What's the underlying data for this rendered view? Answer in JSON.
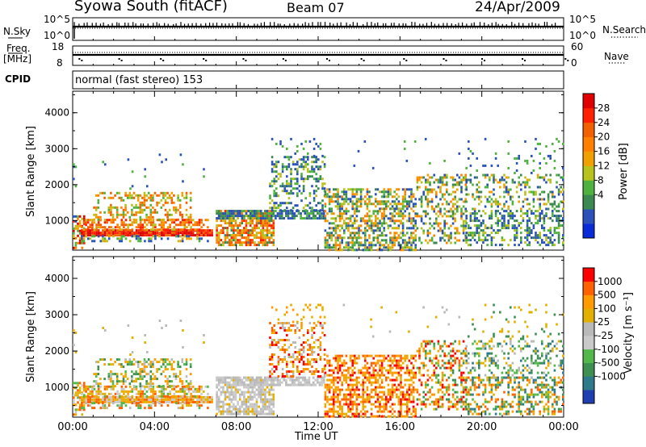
{
  "header": {
    "station": "Syowa South (fitACF)",
    "beam": "Beam 07",
    "date": "24/Apr/2009"
  },
  "top_panels": {
    "nsky_label": "N.Sky",
    "nsky_ticks": [
      "10^5",
      "10^0"
    ],
    "nsearch_label": "N.Search",
    "nsearch_ticks": [
      "10^5",
      "10^0"
    ],
    "freq_label_line1": "Freq.",
    "freq_label_line2": "[MHz]",
    "freq_ticks": [
      "18",
      "8"
    ],
    "nave_label": "Nave",
    "nave_ticks": [
      "60",
      "0"
    ],
    "cpid_label": "CPID",
    "cpid_text": "normal (fast stereo) 153"
  },
  "chart_data": [
    {
      "type": "heatmap",
      "name": "power",
      "ylabel": "Slant Range [km]",
      "ylim": [
        180,
        4600
      ],
      "yticks": [
        "4000",
        "3000",
        "2000",
        "1000"
      ],
      "xlim_hours": [
        0,
        24
      ],
      "colorbar_label": "Power [dB]",
      "colorbar_ticks": [
        "28",
        "24",
        "20",
        "16",
        "12",
        "8",
        "4"
      ],
      "colorbar_colors": [
        "#0a2bd8",
        "#2a52b8",
        "#3b8850",
        "#4fb23e",
        "#b8c21c",
        "#f0a000",
        "#ff8000",
        "#f26000",
        "#ff2000",
        "#e00000"
      ]
    },
    {
      "type": "heatmap",
      "name": "velocity",
      "ylabel": "Slant Range [km]",
      "ylim": [
        180,
        4600
      ],
      "yticks": [
        "4000",
        "3000",
        "2000",
        "1000"
      ],
      "xlim_hours": [
        0,
        24
      ],
      "xticks": [
        "00:00",
        "04:00",
        "08:00",
        "12:00",
        "16:00",
        "20:00",
        "00:00"
      ],
      "xlabel": "Time UT",
      "colorbar_label": "Velocity [m s⁻¹]",
      "colorbar_ticks": [
        "1000",
        "500",
        "100",
        "25",
        "-25",
        "-100",
        "-500",
        "-1000"
      ],
      "colorbar_colors": [
        "#1f3fb0",
        "#2f7a8a",
        "#3d8f52",
        "#52b84a",
        "#c9c9c9",
        "#b9b9b9",
        "#e3b000",
        "#ff9a00",
        "#ff6000",
        "#ff0000"
      ]
    }
  ]
}
